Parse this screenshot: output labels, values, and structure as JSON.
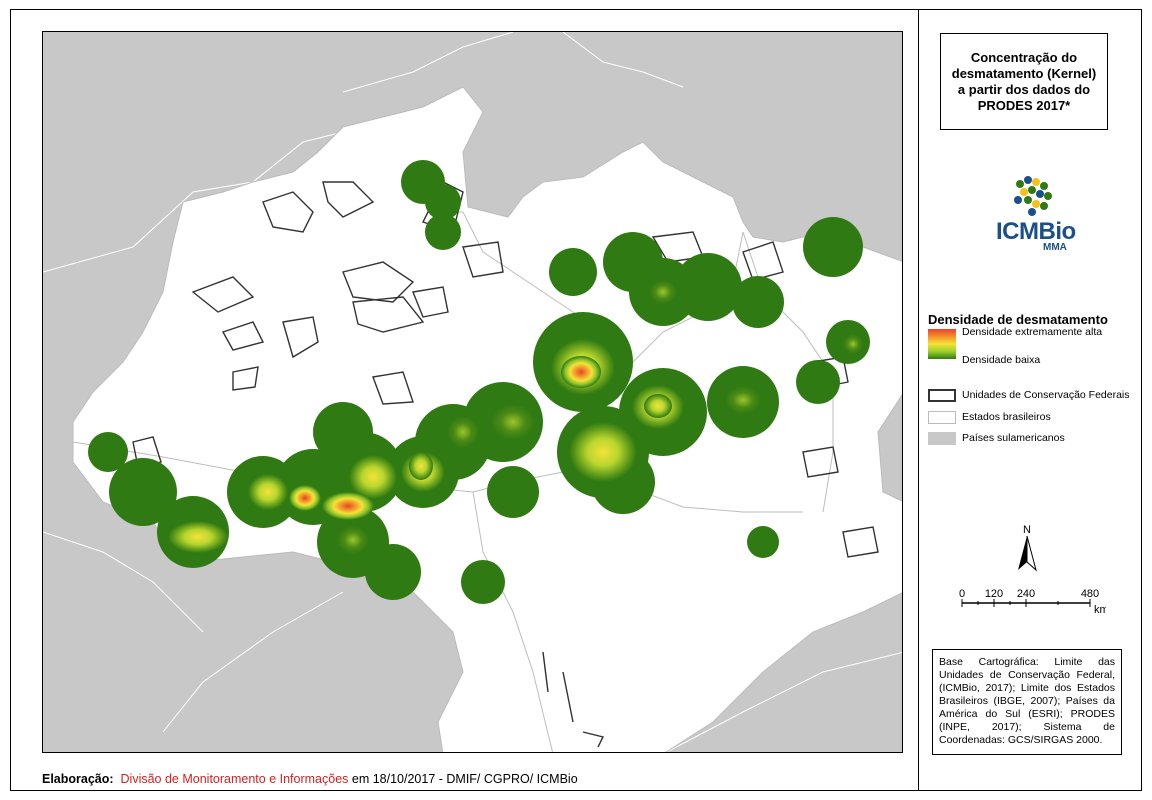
{
  "title": "Concentração do desmatamento (Kernel) a partir dos dados do PRODES 2017*",
  "logo": {
    "name": "ICMBio",
    "sub": "MMA"
  },
  "legend": {
    "density_title": "Densidade de desmatamento",
    "density_high": "Densidade extremamente alta",
    "density_low": "Densidade baixa",
    "items": [
      {
        "label": "Unidades de Conservação Federais",
        "color": "#ffffff",
        "border": "#333333"
      },
      {
        "label": "Estados brasileiros",
        "color": "#ffffff",
        "border": "#bbbbbb"
      },
      {
        "label": "Países sulamericanos",
        "color": "#c8c8c8",
        "border": "#c8c8c8"
      }
    ]
  },
  "north_label": "N",
  "scale": {
    "ticks": [
      "0",
      "120",
      "240",
      "480"
    ],
    "unit": "km"
  },
  "credit": "Base Cartográfica: Limite das Unidades de Conservação Federal, (ICMBio, 2017); Limite dos Estados Brasileiros (IBGE, 2007); Países da América do Sul (ESRI); PRODES (INPE, 2017); Sistema de Coordenadas: GCS/SIRGAS 2000.",
  "footer": {
    "label": "Elaboração:",
    "org": "Divisão de Monitoramento e Informações",
    "rest": " em 18/10/2017 - DMIF/ CGPRO/ ICMBio"
  },
  "colors": {
    "country": "#c8c8c8",
    "brazil": "#ffffff",
    "high_density": "#e8432b",
    "medium_density": "#f4e23a",
    "low_density": "#2f7a12",
    "uc_outline": "#333333"
  }
}
